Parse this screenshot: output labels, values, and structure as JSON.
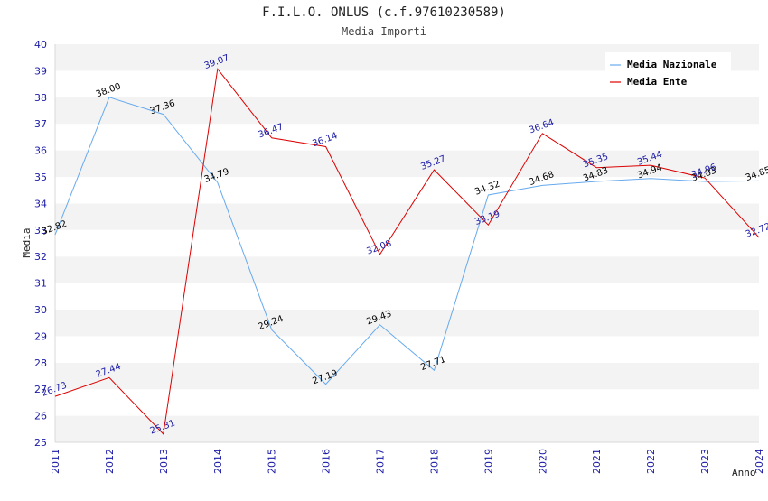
{
  "chart_data": {
    "type": "line",
    "title": "F.I.L.O. ONLUS (c.f.97610230589)",
    "subtitle": "Media Importi",
    "xlabel": "Anno",
    "ylabel": "Media",
    "x": [
      "2011",
      "2012",
      "2013",
      "2014",
      "2015",
      "2016",
      "2017",
      "2018",
      "2019",
      "2020",
      "2021",
      "2022",
      "2023",
      "2024"
    ],
    "ylim": [
      25,
      40
    ],
    "yticks": [
      "25",
      "26",
      "27",
      "28",
      "29",
      "30",
      "31",
      "32",
      "33",
      "34",
      "35",
      "36",
      "37",
      "38",
      "39",
      "40"
    ],
    "grid": "horizontal bands",
    "legend": "top-right",
    "series": [
      {
        "name": "Media Nazionale",
        "color": "#66aaee",
        "values": [
          32.82,
          38.0,
          37.36,
          34.79,
          29.24,
          27.19,
          29.43,
          27.71,
          34.32,
          34.68,
          34.83,
          34.94,
          34.83,
          34.85
        ],
        "labels": [
          "32.82",
          "38.00",
          "37.36",
          "34.79",
          "29.24",
          "27.19",
          "29.43",
          "27.71",
          "34.32",
          "34.68",
          "34.83",
          "34.94",
          "34.83",
          "34.85"
        ]
      },
      {
        "name": "Media Ente",
        "color": "#dd0000",
        "values": [
          26.73,
          27.44,
          25.31,
          39.07,
          36.47,
          36.14,
          32.08,
          35.27,
          33.19,
          36.64,
          35.35,
          35.44,
          34.96,
          32.72
        ],
        "labels": [
          "26.73",
          "27.44",
          "25.31",
          "39.07",
          "36.47",
          "36.14",
          "32.08",
          "35.27",
          "33.19",
          "36.64",
          "35.35",
          "35.44",
          "34.96",
          "32.72"
        ]
      }
    ]
  }
}
